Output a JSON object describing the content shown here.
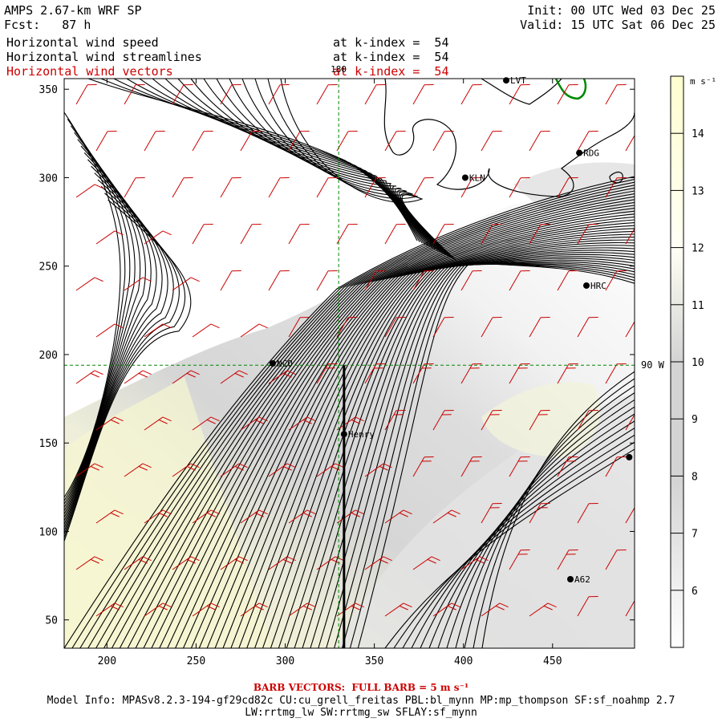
{
  "header": {
    "line1_left": "AMPS 2.67-km WRF SP",
    "line2_left_label": "Fcst:",
    "line2_left_value": "87 h",
    "init": "Init: 00 UTC Wed 03 Dec 25",
    "valid": "Valid: 15 UTC Sat 06 Dec 25",
    "fields": [
      {
        "name": "Horizontal wind speed",
        "level": "at k-index =  54",
        "color": "#000000"
      },
      {
        "name": "Horizontal wind streamlines",
        "level": "at k-index =  54",
        "color": "#000000"
      },
      {
        "name": "Horizontal wind vectors",
        "level": "at k-index =  54",
        "color": "#cc0000"
      }
    ]
  },
  "map": {
    "x_ticks": [
      "200",
      "250",
      "300",
      "350",
      "400",
      "450"
    ],
    "y_ticks": [
      "50",
      "100",
      "150",
      "200",
      "250",
      "300",
      "350"
    ],
    "x_range": [
      176,
      496
    ],
    "y_range": [
      34,
      356
    ],
    "meridian_label": "180",
    "parallel_label": "90 W",
    "meridian_x": 330,
    "parallel_y": 194,
    "stations": [
      {
        "name": "LVT",
        "x": 424,
        "y": 355
      },
      {
        "name": "RDG",
        "x": 465,
        "y": 314
      },
      {
        "name": "KLN",
        "x": 401,
        "y": 300
      },
      {
        "name": "HRC",
        "x": 469,
        "y": 239
      },
      {
        "name": "NCO",
        "x": 293,
        "y": 195
      },
      {
        "name": "Henry",
        "x": 333,
        "y": 155
      },
      {
        "name": "",
        "x": 493,
        "y": 142
      },
      {
        "name": "A62",
        "x": 460,
        "y": 73
      }
    ],
    "section_line": {
      "x": 333,
      "y_from": 34,
      "y_to": 194
    }
  },
  "colorbar": {
    "unit": "m s⁻¹",
    "ticks": [
      14,
      13,
      12,
      11,
      10,
      9,
      8,
      7,
      6
    ],
    "range": [
      5,
      15
    ],
    "colors": {
      "5": "#ffffff",
      "8": "#d3d3d3",
      "10": "#d3d3d3",
      "12": "#fffff5",
      "15": "#fefed0"
    }
  },
  "footer": {
    "barb_note": "BARB VECTORS:  FULL BARB = 5 m s⁻¹",
    "model_info_line1": "Model Info: MPASv8.2.3-194-gf29cd82c CU:cu_grell_freitas PBL:bl_mynn MP:mp_thompson SF:sf_noahmp 2.7",
    "model_info_line2": "LW:rrtmg_lw SW:rrtmg_sw SFLAY:sf_mynn"
  },
  "style": {
    "barb_color": "#cc0000",
    "streamline_color": "#000000",
    "coast_color": "#000000",
    "green_contour": "#008800",
    "guide_line_color": "#008800"
  }
}
